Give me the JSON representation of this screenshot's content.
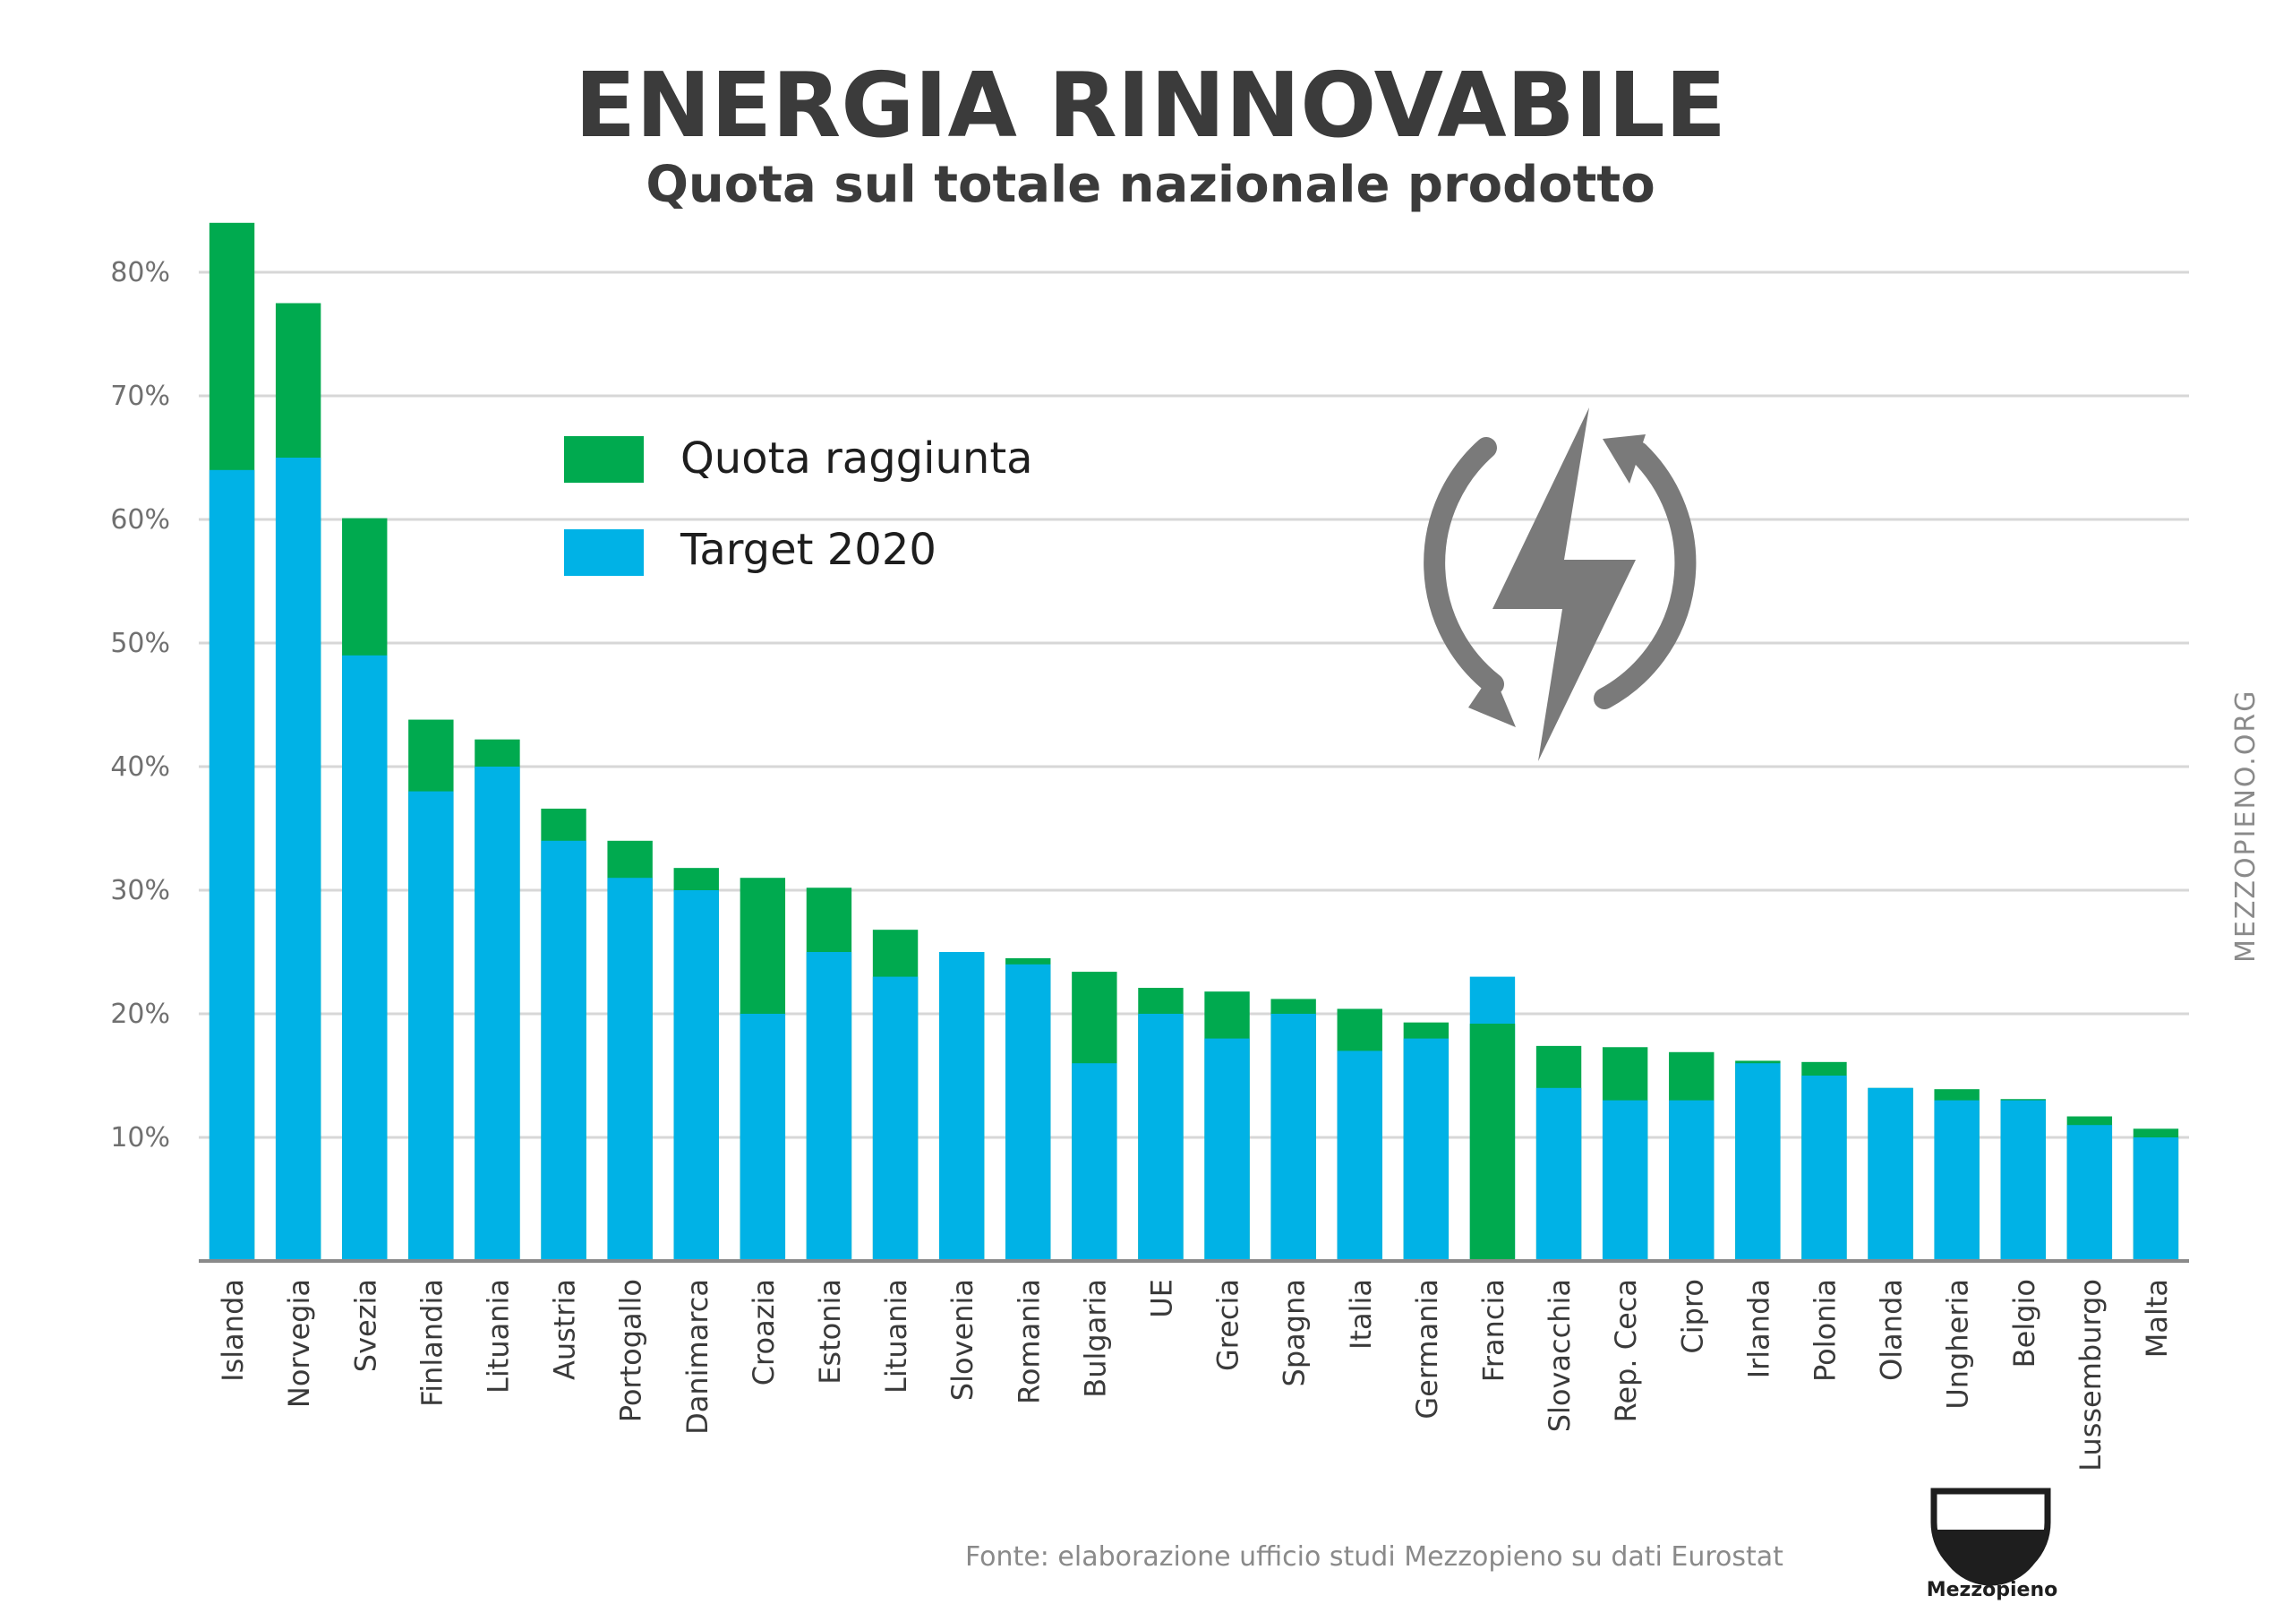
{
  "header": {
    "title": "ENERGIA RINNOVABILE",
    "subtitle": "Quota sul totale nazionale prodotto"
  },
  "legend": [
    {
      "label": "Quota raggiunta",
      "color": "#00aa4f"
    },
    {
      "label": "Target 2020",
      "color": "#00b2e6"
    }
  ],
  "footer": {
    "source": "Fonte: elaborazione ufficio studi Mezzopieno su dati  Eurostat",
    "side_text": "MEZZOPIENO.ORG",
    "brand": "Mezzopieno"
  },
  "icon": {
    "name": "renewable-energy-bolt-icon",
    "color": "#7a7a7a"
  },
  "chart_data": {
    "type": "bar",
    "title": "ENERGIA RINNOVABILE",
    "subtitle": "Quota sul totale nazionale prodotto",
    "xlabel": "",
    "ylabel": "",
    "ylim": [
      0,
      80
    ],
    "yticks": [
      10,
      20,
      30,
      40,
      50,
      60,
      70,
      80
    ],
    "ytick_labels": [
      "10%",
      "20%",
      "30%",
      "40%",
      "50%",
      "60%",
      "70%",
      "80%"
    ],
    "grid": true,
    "legend_position": "top-left",
    "categories": [
      "Islanda",
      "Norvegia",
      "Svezia",
      "Finlandia",
      "Lituania",
      "Austria",
      "Portogallo",
      "Danimarca",
      "Croazia",
      "Estonia",
      "Lituania",
      "Slovenia",
      "Romania",
      "Bulgaria",
      "UE",
      "Grecia",
      "Spagna",
      "Italia",
      "Germania",
      "Francia",
      "Slovacchia",
      "Rep. Ceca",
      "Cipro",
      "Irlanda",
      "Polonia",
      "Olanda",
      "Ungheria",
      "Belgio",
      "Lussemburgo",
      "Malta"
    ],
    "series": [
      {
        "name": "Quota raggiunta",
        "color": "#00aa4f",
        "values": [
          84,
          77.5,
          60.1,
          43.8,
          42.2,
          36.6,
          34,
          31.8,
          31,
          30.2,
          26.8,
          25,
          24.5,
          23.4,
          22.1,
          21.8,
          21.2,
          20.4,
          19.3,
          19.2,
          17.4,
          17.3,
          16.9,
          16.2,
          16.1,
          14,
          13.9,
          13.1,
          11.7,
          10.7
        ]
      },
      {
        "name": "Target 2020",
        "color": "#00b2e6",
        "values": [
          64,
          65,
          49,
          38,
          40,
          34,
          31,
          30,
          20,
          25,
          23,
          25,
          24,
          16,
          20,
          18,
          20,
          17,
          18,
          23,
          14,
          13,
          13,
          16,
          15,
          14,
          13,
          13,
          11,
          10
        ]
      }
    ]
  }
}
